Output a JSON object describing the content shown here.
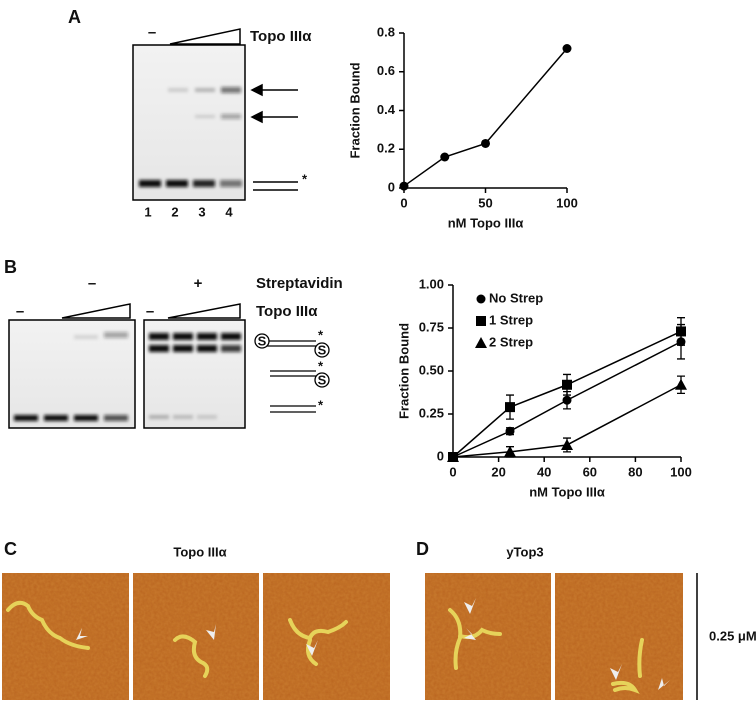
{
  "panel_a": {
    "label": "A",
    "minus": "–",
    "enzyme": "Topo IIIα",
    "lanes": [
      "1",
      "2",
      "3",
      "4"
    ],
    "star": "*"
  },
  "panel_b": {
    "label": "B",
    "minus_strep": "–",
    "plus_strep": "+",
    "streptavidin": "Streptavidin",
    "minus_topo": [
      "–",
      "–"
    ],
    "enzyme": "Topo IIIα",
    "substrates": [
      [
        "S",
        "*",
        "S"
      ],
      [
        "*",
        "S"
      ],
      [
        "*"
      ]
    ]
  },
  "panel_c": {
    "label": "C",
    "title": "Topo IIIα"
  },
  "panel_d": {
    "label": "D",
    "title": "yTop3",
    "scale": "0.25 μM"
  },
  "chart_data": [
    {
      "type": "line",
      "x": [
        0,
        25,
        50,
        100
      ],
      "values": [
        0.01,
        0.16,
        0.23,
        0.72
      ],
      "color": "#000000",
      "marker": "circle",
      "xlabel": "nM Topo IIIα",
      "ylabel": "Fraction Bound",
      "xlim": [
        0,
        100
      ],
      "xticks": [
        0,
        50,
        100
      ],
      "ylim": [
        0,
        0.8
      ],
      "yticks": [
        0,
        0.2,
        0.4,
        0.6,
        0.8
      ]
    },
    {
      "type": "line",
      "x": [
        0,
        25,
        50,
        100
      ],
      "xlabel": "nM Topo IIIα",
      "ylabel": "Fraction Bound",
      "series": [
        {
          "name": "No Strep",
          "color": "#000000",
          "marker": "circle",
          "values": [
            0,
            0.15,
            0.33,
            0.67
          ],
          "errors": [
            0,
            0.02,
            0.05,
            0.1
          ]
        },
        {
          "name": "1 Strep",
          "color": "#000000",
          "marker": "square",
          "values": [
            0,
            0.29,
            0.42,
            0.73
          ],
          "errors": [
            0,
            0.07,
            0.06,
            0.08
          ]
        },
        {
          "name": "2 Strep",
          "color": "#000000",
          "marker": "triangle",
          "values": [
            0,
            0.03,
            0.07,
            0.42
          ],
          "errors": [
            0,
            0.03,
            0.04,
            0.05
          ]
        }
      ],
      "legend": "upper-left",
      "xlim": [
        0,
        100
      ],
      "xticks": [
        0,
        20,
        40,
        60,
        80,
        100
      ],
      "ylim": [
        0,
        1
      ],
      "yticks": [
        0,
        0.25,
        {
          "value": 0.5,
          "label": "0.50"
        },
        0.75,
        {
          "value": 1,
          "label": "1.00"
        }
      ]
    }
  ]
}
